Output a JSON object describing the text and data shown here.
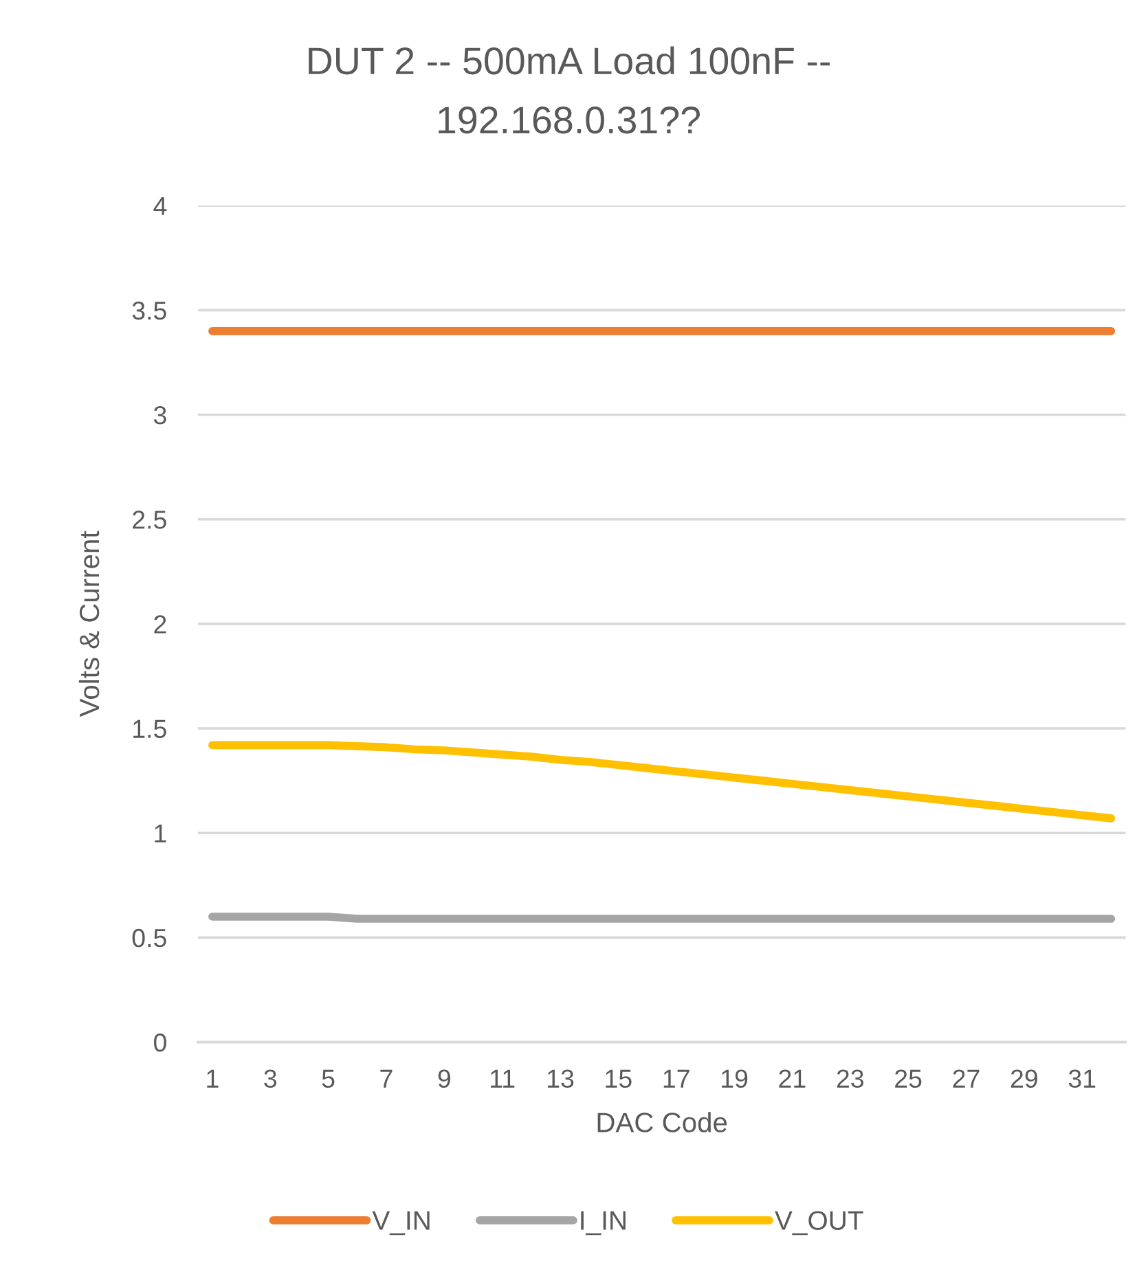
{
  "chart_data": {
    "type": "line",
    "title": "DUT 2 -- 500mA Load 100nF --\n192.168.0.31??",
    "xlabel": "DAC Code",
    "ylabel": "Volts & Current",
    "categories": [
      "1",
      null,
      "3",
      null,
      "5",
      null,
      "7",
      null,
      "9",
      null,
      "11",
      null,
      "13",
      null,
      "15",
      null,
      "17",
      null,
      "19",
      null,
      "21",
      null,
      "23",
      null,
      "25",
      null,
      "27",
      null,
      "29",
      null,
      "31",
      null
    ],
    "series": [
      {
        "name": "V_IN",
        "color": "#ed7d31",
        "values": [
          3.4,
          3.4,
          3.4,
          3.4,
          3.4,
          3.4,
          3.4,
          3.4,
          3.4,
          3.4,
          3.4,
          3.4,
          3.4,
          3.4,
          3.4,
          3.4,
          3.4,
          3.4,
          3.4,
          3.4,
          3.4,
          3.4,
          3.4,
          3.4,
          3.4,
          3.4,
          3.4,
          3.4,
          3.4,
          3.4,
          3.4,
          3.4
        ]
      },
      {
        "name": "I_IN",
        "color": "#a5a5a5",
        "values": [
          0.6,
          0.6,
          0.6,
          0.6,
          0.6,
          0.59,
          0.59,
          0.59,
          0.59,
          0.59,
          0.59,
          0.59,
          0.59,
          0.59,
          0.59,
          0.59,
          0.59,
          0.59,
          0.59,
          0.59,
          0.59,
          0.59,
          0.59,
          0.59,
          0.59,
          0.59,
          0.59,
          0.59,
          0.59,
          0.59,
          0.59,
          0.59
        ]
      },
      {
        "name": "V_OUT",
        "color": "#ffc000",
        "values": [
          1.42,
          1.42,
          1.42,
          1.42,
          1.42,
          1.415,
          1.41,
          1.4,
          1.395,
          1.385,
          1.375,
          1.365,
          1.35,
          1.34,
          1.325,
          1.31,
          1.295,
          1.28,
          1.265,
          1.25,
          1.235,
          1.22,
          1.205,
          1.19,
          1.175,
          1.16,
          1.145,
          1.13,
          1.115,
          1.1,
          1.085,
          1.07
        ]
      }
    ],
    "ylim": [
      0,
      4
    ],
    "yticks": [
      0,
      0.5,
      1,
      1.5,
      2,
      2.5,
      3,
      3.5,
      4
    ],
    "grid": "y",
    "legend": "bottom",
    "marker": "none",
    "line_style": "solid"
  }
}
